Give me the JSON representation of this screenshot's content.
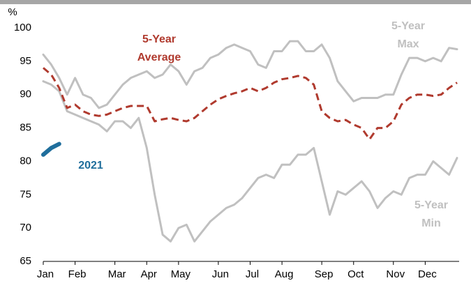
{
  "chart_data": {
    "type": "line",
    "y_unit": "%",
    "categories": [
      "Jan",
      null,
      null,
      null,
      "Feb",
      null,
      null,
      null,
      null,
      "Mar",
      null,
      null,
      null,
      "Apr",
      null,
      null,
      null,
      "May",
      null,
      null,
      null,
      null,
      "Jun",
      null,
      null,
      null,
      "Jul",
      null,
      null,
      null,
      "Aug",
      null,
      null,
      null,
      null,
      "Sep",
      null,
      null,
      null,
      "Oct",
      null,
      null,
      null,
      null,
      "Nov",
      null,
      null,
      null,
      "Dec",
      null,
      null,
      null,
      null
    ],
    "series": [
      {
        "name": "5-Year Max",
        "color": "#c0c0c0",
        "dashed": false,
        "values": [
          96,
          94.5,
          92.5,
          90,
          92.5,
          90,
          89.5,
          88,
          88.5,
          90,
          91.5,
          92.5,
          93,
          93.5,
          92.5,
          93,
          94.5,
          93.5,
          91.5,
          93.5,
          94,
          95.5,
          96,
          97,
          97.5,
          97,
          96.5,
          94.5,
          94,
          96.5,
          96.5,
          98,
          98,
          96.5,
          96.5,
          97.5,
          95.5,
          92,
          90.5,
          89,
          89.5,
          89.5,
          89.5,
          90,
          90,
          93,
          95.5,
          95.5,
          95,
          95.5,
          95,
          97,
          96.8
        ]
      },
      {
        "name": "5-Year Min",
        "color": "#c0c0c0",
        "dashed": false,
        "values": [
          92,
          91.5,
          90.5,
          87.5,
          87,
          86.5,
          86,
          85.5,
          84.5,
          86,
          86,
          85,
          86.5,
          82,
          75,
          69,
          68,
          70,
          70.5,
          68,
          69.5,
          71,
          72,
          73,
          73.5,
          74.5,
          76,
          77.5,
          78,
          77.5,
          79.5,
          79.5,
          81,
          81,
          82,
          77,
          72,
          75.5,
          75,
          76,
          77,
          75.5,
          73,
          74.5,
          75.5,
          75,
          77.5,
          78,
          78,
          80,
          79,
          78,
          80.5
        ]
      },
      {
        "name": "5-Year Average",
        "color": "#b03a2e",
        "dashed": true,
        "values": [
          94,
          93,
          91,
          88,
          88.5,
          87.5,
          87,
          86.8,
          87,
          87.5,
          88,
          88.3,
          88.3,
          88.3,
          86,
          86.3,
          86.5,
          86.2,
          86,
          86.5,
          87.5,
          88.5,
          89.3,
          89.8,
          90.2,
          90.5,
          91,
          90.5,
          91,
          91.8,
          92.3,
          92.5,
          92.8,
          92.5,
          91.5,
          87.5,
          86.5,
          86,
          86.2,
          85.5,
          85,
          83.3,
          85,
          85,
          86,
          88.5,
          89.5,
          90,
          90,
          89.8,
          90,
          91,
          91.8
        ]
      },
      {
        "name": "2021",
        "color": "#1f6e9c",
        "dashed": false,
        "values": [
          81,
          82,
          82.6,
          null,
          null,
          null,
          null,
          null,
          null,
          null,
          null,
          null,
          null,
          null,
          null,
          null,
          null,
          null,
          null,
          null,
          null,
          null,
          null,
          null,
          null,
          null,
          null,
          null,
          null,
          null,
          null,
          null,
          null,
          null,
          null,
          null,
          null,
          null,
          null,
          null,
          null,
          null,
          null,
          null,
          null,
          null,
          null,
          null,
          null,
          null,
          null,
          null,
          null
        ]
      }
    ],
    "ylim": [
      65,
      100
    ],
    "yticks": [
      65,
      70,
      75,
      80,
      85,
      90,
      95,
      100
    ]
  }
}
